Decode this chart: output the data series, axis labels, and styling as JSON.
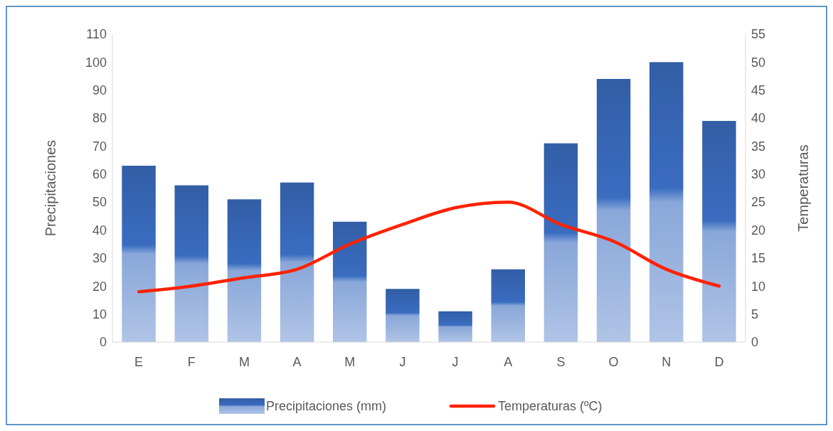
{
  "chart_data": {
    "type": "bar",
    "categories": [
      "E",
      "F",
      "M",
      "A",
      "M",
      "J",
      "J",
      "A",
      "S",
      "O",
      "N",
      "D"
    ],
    "series": [
      {
        "name": "Precipitaciones (mm)",
        "color": "#3a6cc0",
        "values": [
          63,
          56,
          51,
          57,
          43,
          19,
          11,
          26,
          71,
          94,
          100,
          79
        ]
      },
      {
        "name": "Temperaturas (ºC)",
        "type": "line",
        "axis": "y2",
        "color": "#ff2200",
        "values": [
          9,
          10,
          11.5,
          13,
          17.5,
          21,
          24,
          25,
          21,
          18,
          13,
          10
        ]
      }
    ],
    "ylabel": "Precipitaciones",
    "y2label": "Temperaturas",
    "ylim": [
      0,
      110
    ],
    "yticks": [
      0,
      10,
      20,
      30,
      40,
      50,
      60,
      70,
      80,
      90,
      100,
      110
    ],
    "y2lim": [
      0,
      55
    ],
    "y2ticks": [
      0,
      5,
      10,
      15,
      20,
      25,
      30,
      35,
      40,
      45,
      50,
      55
    ],
    "legend": "bottom"
  }
}
